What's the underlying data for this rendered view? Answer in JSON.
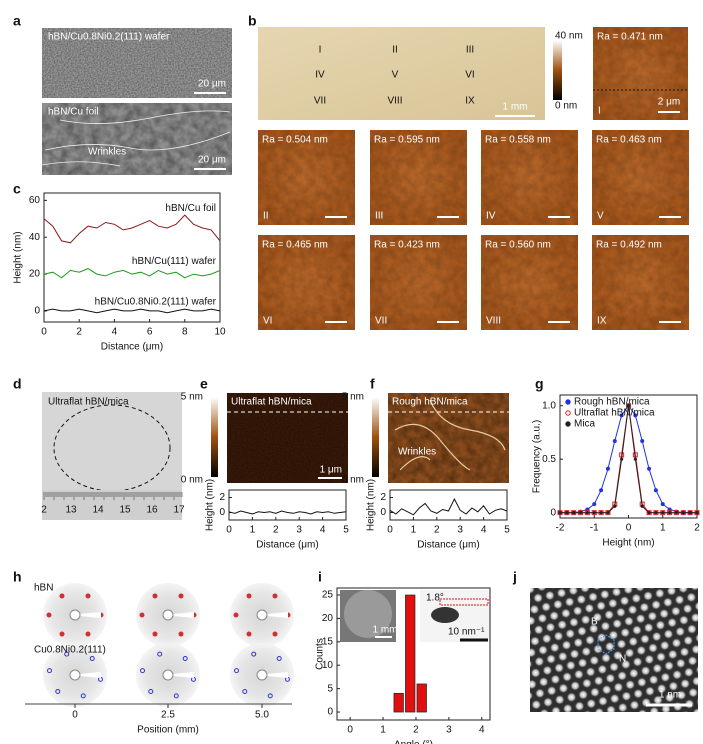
{
  "figure": {
    "panel_labels": [
      "a",
      "b",
      "c",
      "d",
      "e",
      "f",
      "g",
      "h",
      "i",
      "j"
    ],
    "a": {
      "top_label": "hBN/Cu0.8Ni0.2(111) wafer",
      "top_scale": "20 μm",
      "bottom_label": "hBN/Cu foil",
      "annotation": "Wrinkles",
      "bottom_scale": "20 μm"
    },
    "b": {
      "sites": [
        "I",
        "II",
        "III",
        "IV",
        "V",
        "VI",
        "VII",
        "VIII",
        "IX"
      ],
      "optical_scale": "1 mm",
      "colorbar_max": "40 nm",
      "colorbar_min": "0 nm",
      "roughness": [
        "Ra = 0.471 nm",
        "Ra = 0.504 nm",
        "Ra = 0.595 nm",
        "Ra = 0.558 nm",
        "Ra = 0.463 nm",
        "Ra = 0.465 nm",
        "Ra = 0.423 nm",
        "Ra = 0.560 nm",
        "Ra = 0.492 nm"
      ],
      "afm_scale": "2 μm"
    },
    "d": {
      "label": "Ultraflat hBN/mica",
      "ruler": [
        "2",
        "13",
        "14",
        "15",
        "16",
        "17"
      ]
    },
    "e": {
      "label": "Ultraflat hBN/mica",
      "colorbar_max": "5 nm",
      "colorbar_min": "0 nm",
      "scale": "1 μm"
    },
    "f": {
      "label": "Rough hBN/mica",
      "colorbar_max": "5 nm",
      "colorbar_min": "0 nm",
      "annotation": "Wrinkles"
    },
    "h": {
      "top_label": "hBN",
      "bottom_label": "Cu0.8Ni0.2(111)",
      "positions": [
        "0",
        "2.5",
        "5.0"
      ],
      "axis_label": "Position (mm)"
    },
    "i": {
      "angle_label": "1.8°",
      "sem_scale": "1 mm",
      "saed_scale": "10 nm⁻¹"
    },
    "j": {
      "atoms": [
        "B",
        "N"
      ],
      "scale": "1 nm"
    }
  },
  "chart_data": [
    {
      "type": "line",
      "xlabel": "Distance (μm)",
      "ylabel": "Height (nm)",
      "x": [
        0,
        0.5,
        1,
        1.5,
        2,
        2.5,
        3,
        3.5,
        4,
        4.5,
        5,
        5.5,
        6,
        6.5,
        7,
        7.5,
        8,
        8.5,
        9,
        9.5,
        10
      ],
      "xlim": [
        0,
        10
      ],
      "xticks": [
        0,
        2,
        4,
        6,
        8,
        10
      ],
      "ylim": [
        -6,
        64
      ],
      "yticks": [
        0,
        20,
        40,
        60
      ],
      "series": [
        {
          "name": "hBN/Cu foil",
          "color": "#8b1a1a",
          "values": [
            50,
            46,
            38,
            37,
            42,
            46,
            45,
            48,
            47,
            44,
            45,
            47,
            49,
            46,
            45,
            47,
            52,
            47,
            45,
            44,
            38
          ]
        },
        {
          "name": "hBN/Cu(111) wafer",
          "color": "#1f9a1f",
          "values": [
            20,
            21,
            18,
            22,
            21,
            23,
            20,
            19,
            21,
            22,
            20,
            21,
            19,
            22,
            20,
            21,
            18,
            20,
            19,
            20,
            22
          ]
        },
        {
          "name": "hBN/Cu0.8Ni0.2(111) wafer",
          "color": "#111111",
          "values": [
            0,
            1,
            0,
            0,
            1,
            0,
            -1,
            0,
            1,
            0,
            0,
            1,
            0,
            0,
            -1,
            0,
            1,
            0,
            0,
            1,
            0
          ]
        }
      ]
    },
    {
      "type": "line",
      "xlabel": "Distance (μm)",
      "ylabel": "Height (nm)",
      "x": [
        0,
        0.25,
        0.5,
        0.75,
        1,
        1.25,
        1.5,
        1.75,
        2,
        2.25,
        2.5,
        2.75,
        3,
        3.25,
        3.5,
        3.75,
        4,
        4.25,
        4.5,
        4.75,
        5
      ],
      "xlim": [
        0,
        5
      ],
      "xticks": [
        0,
        1,
        2,
        3,
        4,
        5
      ],
      "ylim": [
        -1,
        3
      ],
      "yticks": [
        0,
        2
      ],
      "series": [
        {
          "color": "#111111",
          "values": [
            0.1,
            -0.1,
            0.2,
            0,
            -0.2,
            0.1,
            0,
            0.1,
            -0.1,
            0.2,
            0,
            -0.1,
            0.1,
            0,
            -0.2,
            0.1,
            0,
            0.1,
            -0.1,
            0,
            0.1
          ]
        }
      ]
    },
    {
      "type": "line",
      "xlabel": "Distance (μm)",
      "ylabel": "Height (nm)",
      "x": [
        0,
        0.25,
        0.5,
        0.75,
        1,
        1.25,
        1.5,
        1.75,
        2,
        2.25,
        2.5,
        2.75,
        3,
        3.25,
        3.5,
        3.75,
        4,
        4.25,
        4.5,
        4.75,
        5
      ],
      "xlim": [
        0,
        5
      ],
      "xticks": [
        0,
        1,
        2,
        3,
        4,
        5
      ],
      "ylim": [
        -1,
        3
      ],
      "yticks": [
        0,
        2
      ],
      "series": [
        {
          "color": "#111111",
          "values": [
            0.3,
            -0.2,
            0.5,
            0.1,
            -0.3,
            0.6,
            1.2,
            0.2,
            -0.1,
            0.4,
            0.2,
            1.8,
            0.3,
            -0.2,
            0.6,
            0.1,
            0.9,
            -0.2,
            0.3,
            0.5,
            0.2
          ]
        }
      ]
    },
    {
      "type": "scatter",
      "xlabel": "Height (nm)",
      "ylabel": "Frequency (a.u.)",
      "legend": "upper left",
      "x": [
        -2,
        -1.8,
        -1.6,
        -1.4,
        -1.2,
        -1,
        -0.8,
        -0.6,
        -0.4,
        -0.2,
        0,
        0.2,
        0.4,
        0.6,
        0.8,
        1,
        1.2,
        1.4,
        1.6,
        1.8,
        2
      ],
      "xlim": [
        -2,
        2
      ],
      "xticks": [
        -2,
        -1,
        0,
        1,
        2
      ],
      "ylim": [
        -0.05,
        1.1
      ],
      "yticks": [
        0,
        0.5,
        {
          "value": 1,
          "label": "1.0"
        }
      ],
      "series": [
        {
          "name": "Rough hBN/mica",
          "color": "#2233dd",
          "values": [
            0,
            0,
            0,
            0.01,
            0.03,
            0.08,
            0.21,
            0.41,
            0.67,
            0.91,
            1,
            0.91,
            0.67,
            0.41,
            0.21,
            0.08,
            0.03,
            0.01,
            0,
            0,
            0
          ]
        },
        {
          "name": "Ultraflat hBN/mica",
          "color": "#dd2222",
          "values": [
            0,
            0,
            0,
            0,
            0,
            0,
            0,
            0,
            0.08,
            0.54,
            1,
            0.54,
            0.08,
            0,
            0,
            0,
            0,
            0,
            0,
            0,
            0
          ]
        },
        {
          "name": "Mica",
          "color": "#222222",
          "values": [
            0,
            0,
            0,
            0,
            0,
            0,
            0,
            0,
            0.06,
            0.5,
            1,
            0.5,
            0.06,
            0,
            0,
            0,
            0,
            0,
            0,
            0,
            0
          ]
        }
      ]
    },
    {
      "type": "histogram",
      "xlabel": "Angle (°)",
      "ylabel": "Counts",
      "color": "#e01010",
      "bins": [
        1.3,
        1.65,
        2.0,
        2.35
      ],
      "values": [
        4,
        25,
        6
      ],
      "xlim": [
        -0.4,
        4.25
      ],
      "xticks": [
        0,
        1,
        2,
        3,
        4
      ],
      "ylim": [
        -1.7,
        26.5
      ],
      "yticks": [
        0,
        5,
        10,
        15,
        20,
        25
      ]
    }
  ]
}
